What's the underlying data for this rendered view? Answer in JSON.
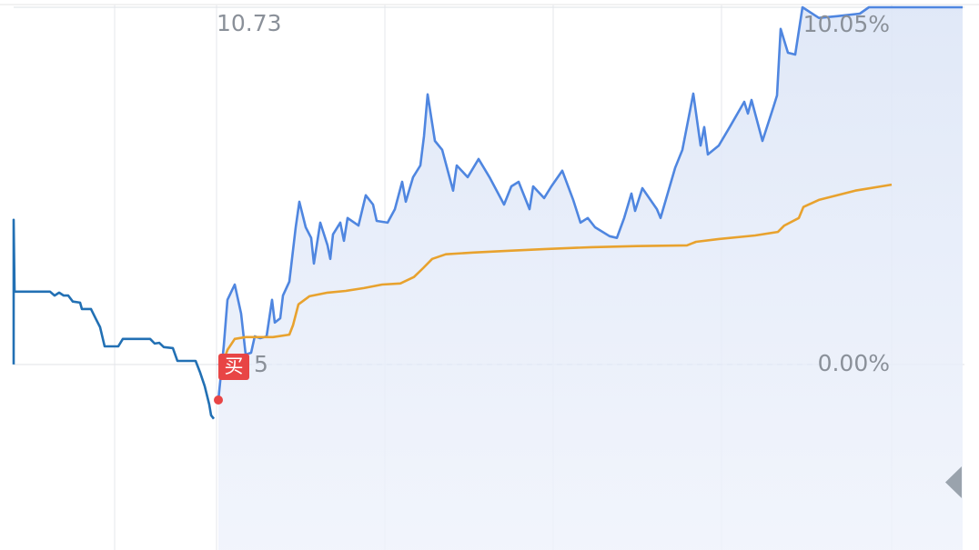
{
  "chart_data": {
    "type": "line",
    "price_high": "10.73",
    "price_low_visible": "5",
    "buy_badge": "买",
    "xlim": [
      0,
      1045
    ],
    "xticks": [
      111,
      223,
      408,
      593,
      778,
      965
    ],
    "ylim": [
      -5.22,
      10.05
    ],
    "yticks": [
      {
        "value": 0,
        "label": "0.00%"
      },
      {
        "value": 10.05,
        "label": "10.05%"
      }
    ],
    "grid": true,
    "series": [
      {
        "color": "#2270b4",
        "x": [
          0,
          0,
          1,
          40,
          45,
          50,
          55,
          60,
          65,
          73,
          75,
          85,
          90,
          95,
          100,
          115,
          120,
          150,
          155,
          160,
          165,
          175,
          180,
          200,
          205,
          210,
          215,
          217,
          220
        ],
        "values": [
          0,
          4.07,
          2.05,
          2.05,
          1.94,
          2.02,
          1.94,
          1.94,
          1.77,
          1.74,
          1.56,
          1.56,
          1.3,
          1.05,
          0.51,
          0.51,
          0.72,
          0.72,
          0.59,
          0.61,
          0.49,
          0.46,
          0.1,
          0.1,
          -0.23,
          -0.61,
          -1.13,
          -1.43,
          -1.53
        ]
      },
      {
        "color": "#4f86e0",
        "area": true,
        "x": [
          225,
          231,
          235,
          243,
          250,
          255,
          261,
          265,
          271,
          278,
          284,
          287,
          293,
          296,
          303,
          310,
          314,
          321,
          327,
          330,
          337,
          345,
          348,
          351,
          359,
          363,
          367,
          379,
          387,
          395,
          399,
          411,
          419,
          427,
          431,
          439,
          447,
          451,
          455,
          463,
          471,
          483,
          487,
          499,
          511,
          523,
          539,
          547,
          555,
          567,
          571,
          583,
          591,
          603,
          615,
          623,
          631,
          639,
          655,
          663,
          671,
          679,
          683,
          691,
          707,
          711,
          727,
          735,
          747,
          755,
          759,
          763,
          775,
          787,
          803,
          807,
          811,
          823,
          835,
          839,
          843,
          851,
          859,
          867,
          885,
          905,
          930,
          940,
          1043
        ],
        "values": [
          -1.0,
          0.54,
          1.82,
          2.25,
          1.43,
          0.28,
          0.33,
          0.79,
          0.74,
          0.79,
          1.82,
          1.18,
          1.3,
          1.94,
          2.33,
          3.86,
          4.58,
          3.86,
          3.56,
          2.84,
          3.99,
          3.35,
          2.97,
          3.66,
          3.99,
          3.48,
          4.12,
          3.91,
          4.76,
          4.5,
          4.04,
          3.99,
          4.37,
          5.14,
          4.58,
          5.27,
          5.6,
          6.42,
          7.6,
          6.29,
          6.04,
          4.89,
          5.6,
          5.27,
          5.78,
          5.27,
          4.5,
          5.01,
          5.14,
          4.37,
          5.01,
          4.68,
          5.01,
          5.45,
          4.63,
          3.99,
          4.12,
          3.86,
          3.61,
          3.56,
          4.12,
          4.81,
          4.32,
          4.96,
          4.37,
          4.12,
          5.53,
          6.04,
          7.62,
          6.16,
          6.68,
          5.91,
          6.16,
          6.68,
          7.39,
          7.06,
          7.44,
          6.29,
          7.24,
          7.57,
          9.44,
          8.77,
          8.72,
          10.05,
          9.75,
          9.8,
          9.87,
          10.05,
          10.05
        ]
      },
      {
        "color": "#e8a22e",
        "x": [
          228,
          235,
          243,
          255,
          285,
          303,
          307,
          313,
          325,
          345,
          365,
          385,
          405,
          425,
          440,
          450,
          460,
          475,
          505,
          545,
          585,
          635,
          685,
          740,
          750,
          775,
          815,
          840,
          847,
          863,
          868,
          885,
          925,
          965
        ],
        "values": [
          -0.1,
          0.41,
          0.72,
          0.77,
          0.77,
          0.84,
          1.1,
          1.69,
          1.92,
          2.02,
          2.07,
          2.15,
          2.25,
          2.28,
          2.46,
          2.71,
          2.97,
          3.1,
          3.15,
          3.2,
          3.25,
          3.3,
          3.33,
          3.35,
          3.45,
          3.53,
          3.63,
          3.73,
          3.91,
          4.12,
          4.43,
          4.63,
          4.89,
          5.06
        ]
      }
    ]
  }
}
